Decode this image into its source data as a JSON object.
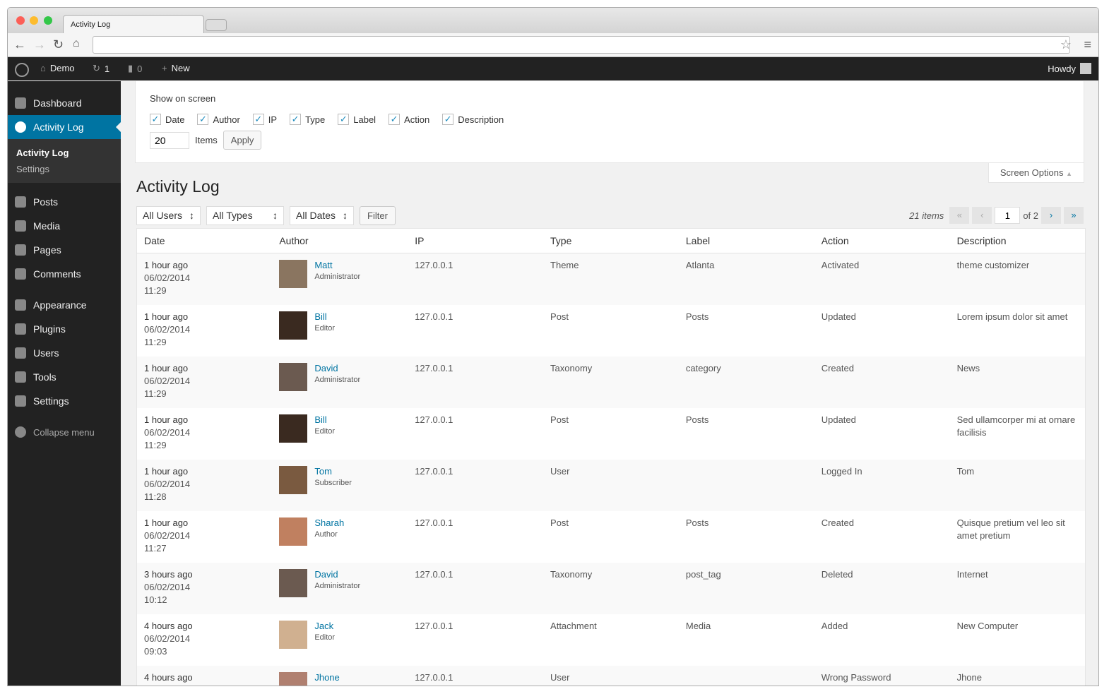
{
  "browser": {
    "tab_title": "Activity Log"
  },
  "adminbar": {
    "site": "Demo",
    "updates": "1",
    "comments": "0",
    "new": "New",
    "howdy": "Howdy"
  },
  "sidebar": {
    "items": [
      {
        "label": "Dashboard"
      },
      {
        "label": "Activity Log"
      },
      {
        "label": "Posts"
      },
      {
        "label": "Media"
      },
      {
        "label": "Pages"
      },
      {
        "label": "Comments"
      },
      {
        "label": "Appearance"
      },
      {
        "label": "Plugins"
      },
      {
        "label": "Users"
      },
      {
        "label": "Tools"
      },
      {
        "label": "Settings"
      }
    ],
    "submenu": [
      "Activity Log",
      "Settings"
    ],
    "collapse": "Collapse menu"
  },
  "screen_options": {
    "title": "Show on screen",
    "columns": [
      "Date",
      "Author",
      "IP",
      "Type",
      "Label",
      "Action",
      "Description"
    ],
    "items_value": "20",
    "items_label": "Items",
    "apply": "Apply",
    "toggle": "Screen Options"
  },
  "page_title": "Activity Log",
  "filters": {
    "users": "All Users",
    "types": "All Types",
    "dates": "All Dates",
    "filter": "Filter"
  },
  "pagination": {
    "count": "21 items",
    "first": "«",
    "prev": "‹",
    "page": "1",
    "of": "of 2",
    "next": "›",
    "last": "»"
  },
  "table": {
    "headers": [
      "Date",
      "Author",
      "IP",
      "Type",
      "Label",
      "Action",
      "Description"
    ],
    "rows": [
      {
        "ago": "1 hour ago",
        "date": "06/02/2014",
        "time": "11:29",
        "author": "Matt",
        "role": "Administrator",
        "ip": "127.0.0.1",
        "type": "Theme",
        "label": "Atlanta",
        "action": "Activated",
        "desc": "theme customizer"
      },
      {
        "ago": "1 hour ago",
        "date": "06/02/2014",
        "time": "11:29",
        "author": "Bill",
        "role": "Editor",
        "ip": "127.0.0.1",
        "type": "Post",
        "label": "Posts",
        "action": "Updated",
        "desc": "Lorem ipsum dolor sit amet"
      },
      {
        "ago": "1 hour ago",
        "date": "06/02/2014",
        "time": "11:29",
        "author": "David",
        "role": "Administrator",
        "ip": "127.0.0.1",
        "type": "Taxonomy",
        "label": "category",
        "action": "Created",
        "desc": "News"
      },
      {
        "ago": "1 hour ago",
        "date": "06/02/2014",
        "time": "11:29",
        "author": "Bill",
        "role": "Editor",
        "ip": "127.0.0.1",
        "type": "Post",
        "label": "Posts",
        "action": "Updated",
        "desc": "Sed ullamcorper mi at ornare facilisis"
      },
      {
        "ago": "1 hour ago",
        "date": "06/02/2014",
        "time": "11:28",
        "author": "Tom",
        "role": "Subscriber",
        "ip": "127.0.0.1",
        "type": "User",
        "label": "",
        "action": "Logged In",
        "desc": "Tom"
      },
      {
        "ago": "1 hour ago",
        "date": "06/02/2014",
        "time": "11:27",
        "author": "Sharah",
        "role": "Author",
        "ip": "127.0.0.1",
        "type": "Post",
        "label": "Posts",
        "action": "Created",
        "desc": "Quisque pretium vel leo sit amet pretium"
      },
      {
        "ago": "3 hours ago",
        "date": "06/02/2014",
        "time": "10:12",
        "author": "David",
        "role": "Administrator",
        "ip": "127.0.0.1",
        "type": "Taxonomy",
        "label": "post_tag",
        "action": "Deleted",
        "desc": "Internet"
      },
      {
        "ago": "4 hours ago",
        "date": "06/02/2014",
        "time": "09:03",
        "author": "Jack",
        "role": "Editor",
        "ip": "127.0.0.1",
        "type": "Attachment",
        "label": "Media",
        "action": "Added",
        "desc": "New Computer"
      },
      {
        "ago": "4 hours ago",
        "date": "",
        "time": "",
        "author": "Jhone",
        "role": "",
        "ip": "127.0.0.1",
        "type": "User",
        "label": "",
        "action": "Wrong Password",
        "desc": "Jhone"
      }
    ]
  },
  "colors": {
    "accent": "#0074a2",
    "sidebar": "#222222",
    "adminbar": "#222222"
  }
}
